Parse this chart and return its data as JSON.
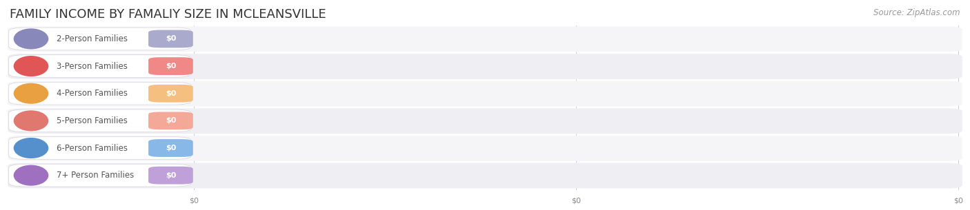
{
  "title": "FAMILY INCOME BY FAMALIY SIZE IN MCLEANSVILLE",
  "source": "Source: ZipAtlas.com",
  "categories": [
    "2-Person Families",
    "3-Person Families",
    "4-Person Families",
    "5-Person Families",
    "6-Person Families",
    "7+ Person Families"
  ],
  "values": [
    0,
    0,
    0,
    0,
    0,
    0
  ],
  "bar_colors": [
    "#aaaacc",
    "#f08888",
    "#f5bf80",
    "#f4a898",
    "#88b8e8",
    "#c0a0d8"
  ],
  "dot_colors": [
    "#8888bb",
    "#e05555",
    "#e8a040",
    "#e07870",
    "#5590cc",
    "#a070c0"
  ],
  "label_color": "#555555",
  "value_color": "#ffffff",
  "title_color": "#333333",
  "source_color": "#999999",
  "row_odd_color": "#f5f5f8",
  "row_even_color": "#eeeef3",
  "track_color": "#e4e4ec",
  "pill_bg_color": "#ffffff",
  "pill_edge_color": "#d8d8e4",
  "grid_color": "#ccccdd",
  "title_fontsize": 13,
  "label_fontsize": 8.5,
  "value_fontsize": 8,
  "source_fontsize": 8.5,
  "xtick_fontsize": 8,
  "background_color": "#ffffff"
}
